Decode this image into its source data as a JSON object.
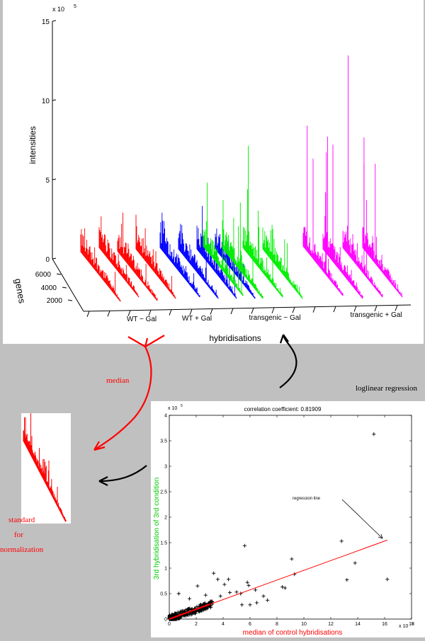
{
  "top_chart": {
    "exponent_label": "x 10",
    "exponent_power": "5",
    "z_label": "intensities",
    "z_ticks": [
      "0",
      "5",
      "10",
      "15"
    ],
    "y_label": "genes",
    "y_ticks": [
      "2000",
      "4000",
      "6000"
    ],
    "x_label": "hybridisations",
    "groups": [
      {
        "label": "WT − Gal",
        "color": "#ff0000",
        "peak": 3.0
      },
      {
        "label": "WT + Gal",
        "color": "#0000ff",
        "peak": 3.3
      },
      {
        "label": "transgenic − Gal",
        "color": "#00ee00",
        "peak": 7.2
      },
      {
        "label": "transgenic + Gal",
        "color": "#ff00ff",
        "peak": 13.2
      }
    ]
  },
  "arrows": {
    "median_label": "median",
    "regression_label": "loglinear regression"
  },
  "standard": {
    "line1": "standard",
    "line2": "for",
    "line3": "normalization",
    "color": "#ff0000"
  },
  "scatter": {
    "title": "correlation coefficient: 0.81909",
    "y_label": "3rd hybridisation of 3rd condition",
    "x_label": "median of control hybridisations",
    "y_exponent": "x 10",
    "x_exponent": "x 10",
    "exponent_power": "5",
    "y_ticks": [
      "0",
      "0.5",
      "1",
      "1.5",
      "2",
      "2.5",
      "3",
      "3.5",
      "4"
    ],
    "x_ticks": [
      "0",
      "2",
      "4",
      "6",
      "8",
      "10",
      "12",
      "14",
      "16",
      "18"
    ],
    "annotation": "regression line",
    "regression": {
      "x0": 0,
      "y0": 0,
      "x1": 16.2,
      "y1": 1.55
    },
    "outliers": [
      [
        15.2,
        3.63
      ],
      [
        5.6,
        1.44
      ],
      [
        12.8,
        1.53
      ],
      [
        13.8,
        1.1
      ],
      [
        16.2,
        0.78
      ],
      [
        13.2,
        0.77
      ],
      [
        9.1,
        1.18
      ],
      [
        9.3,
        0.88
      ],
      [
        8.4,
        0.63
      ],
      [
        8.6,
        0.61
      ],
      [
        3.3,
        0.9
      ],
      [
        3.6,
        0.78
      ],
      [
        4.4,
        0.78
      ],
      [
        4.5,
        0.52
      ],
      [
        5.0,
        0.53
      ],
      [
        5.3,
        0.5
      ],
      [
        5.8,
        0.72
      ],
      [
        5.9,
        0.66
      ],
      [
        6.4,
        0.57
      ],
      [
        7.0,
        0.45
      ],
      [
        7.3,
        0.37
      ],
      [
        6.5,
        0.32
      ],
      [
        5.4,
        0.28
      ],
      [
        4.1,
        0.68
      ],
      [
        2.1,
        0.65
      ],
      [
        0.7,
        0.5
      ],
      [
        3.8,
        0.45
      ],
      [
        6.0,
        0.28
      ],
      [
        1.5,
        0.4
      ],
      [
        2.7,
        0.47
      ]
    ]
  }
}
